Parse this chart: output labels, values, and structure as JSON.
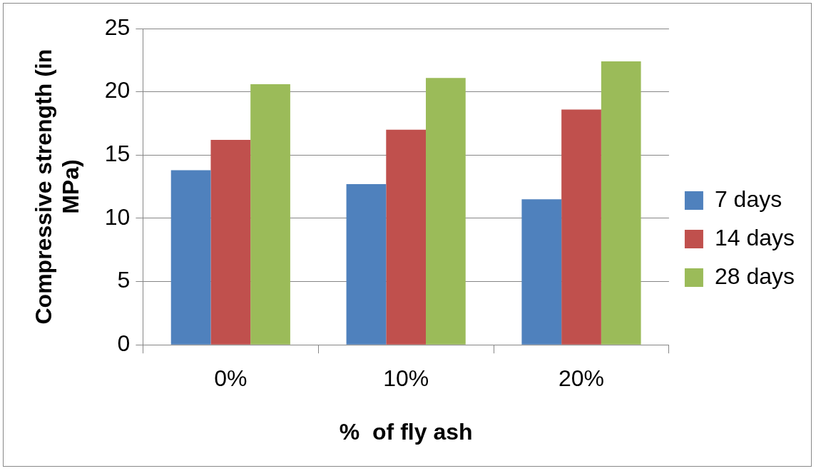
{
  "chart_data": {
    "type": "bar",
    "xlabel": "%  of fly ash",
    "ylabel": "Compressive strength (in MPa)",
    "categories": [
      "0%",
      "10%",
      "20%"
    ],
    "series": [
      {
        "name": "7 days",
        "color": "#4f81bd",
        "values": [
          13.8,
          12.7,
          11.5
        ]
      },
      {
        "name": "14 days",
        "color": "#c0504d",
        "values": [
          16.2,
          17.0,
          18.6
        ]
      },
      {
        "name": "28 days",
        "color": "#9bbb59",
        "values": [
          20.6,
          21.1,
          22.4
        ]
      }
    ],
    "ylim": [
      0,
      25
    ],
    "yticks": [
      0,
      5,
      10,
      15,
      20,
      25
    ],
    "grid": "y",
    "legend": "right"
  }
}
